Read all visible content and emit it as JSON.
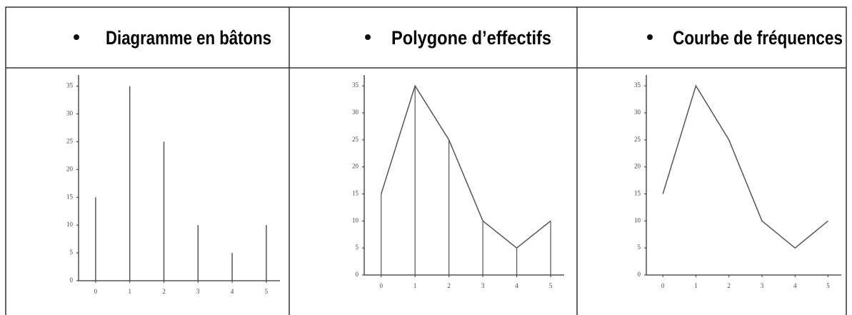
{
  "chart_data": [
    {
      "type": "bar",
      "title": "Diagramme en bâtons",
      "x": [
        0,
        1,
        2,
        3,
        4,
        5
      ],
      "values": [
        15,
        35,
        25,
        10,
        5,
        10
      ],
      "color": "#555555",
      "xlim": [
        -0.5,
        5.4
      ],
      "xticks": [
        0,
        1,
        2,
        3,
        4,
        5
      ],
      "ylim": [
        0,
        37
      ],
      "yticks": [
        0,
        5,
        10,
        15,
        20,
        25,
        30,
        35
      ]
    },
    {
      "type": "line",
      "title": "Polygone   d’effectifs",
      "x": [
        0,
        1,
        2,
        3,
        4,
        5
      ],
      "values": [
        15,
        35,
        25,
        10,
        5,
        10
      ],
      "color": "#555555",
      "drop_lines": true,
      "xlim": [
        -0.5,
        5.4
      ],
      "xticks": [
        0,
        1,
        2,
        3,
        4,
        5
      ],
      "ylim": [
        0,
        37
      ],
      "yticks": [
        0,
        5,
        10,
        15,
        20,
        25,
        30,
        35
      ]
    },
    {
      "type": "line",
      "title": "Courbe de fréquences",
      "x": [
        0,
        1,
        2,
        3,
        4,
        5
      ],
      "values": [
        15,
        35,
        25,
        10,
        5,
        10
      ],
      "color": "#555555",
      "drop_lines": false,
      "xlim": [
        -0.5,
        5.4
      ],
      "xticks": [
        0,
        1,
        2,
        3,
        4,
        5
      ],
      "ylim": [
        0,
        37
      ],
      "yticks": [
        0,
        5,
        10,
        15,
        20,
        25,
        30,
        35
      ]
    }
  ]
}
